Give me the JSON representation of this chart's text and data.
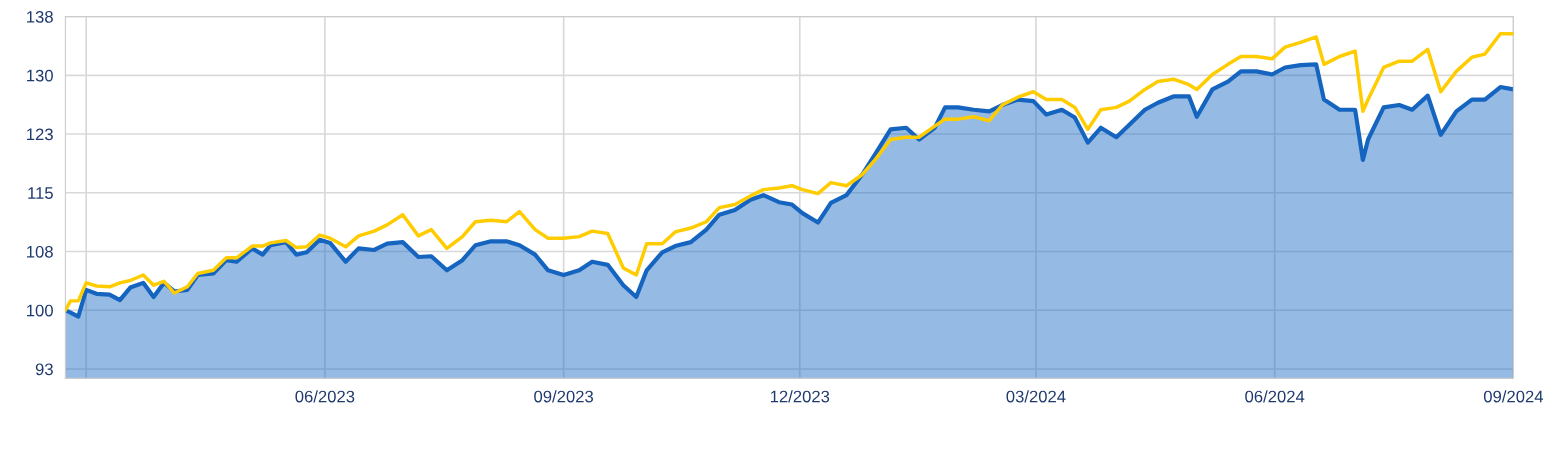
{
  "chart_data": {
    "type": "line",
    "x": [
      "2023-02-21",
      "2023-02-23",
      "2023-02-26",
      "2023-03-01",
      "2023-03-05",
      "2023-03-10",
      "2023-03-14",
      "2023-03-18",
      "2023-03-23",
      "2023-03-27",
      "2023-03-31",
      "2023-04-04",
      "2023-04-09",
      "2023-04-13",
      "2023-04-19",
      "2023-04-24",
      "2023-04-28",
      "2023-05-04",
      "2023-05-08",
      "2023-05-11",
      "2023-05-17",
      "2023-05-21",
      "2023-05-25",
      "2023-05-30",
      "2023-06-03",
      "2023-06-09",
      "2023-06-14",
      "2023-06-20",
      "2023-06-25",
      "2023-07-01",
      "2023-07-07",
      "2023-07-12",
      "2023-07-18",
      "2023-07-24",
      "2023-07-29",
      "2023-08-04",
      "2023-08-10",
      "2023-08-15",
      "2023-08-21",
      "2023-08-26",
      "2023-09-01",
      "2023-09-07",
      "2023-09-12",
      "2023-09-18",
      "2023-09-24",
      "2023-09-29",
      "2023-10-03",
      "2023-10-09",
      "2023-10-14",
      "2023-10-20",
      "2023-10-26",
      "2023-10-31",
      "2023-11-06",
      "2023-11-12",
      "2023-11-17",
      "2023-11-23",
      "2023-11-28",
      "2023-12-02",
      "2023-12-08",
      "2023-12-13",
      "2023-12-19",
      "2023-12-25",
      "2023-12-30",
      "2024-01-05",
      "2024-01-11",
      "2024-01-16",
      "2024-01-22",
      "2024-01-26",
      "2024-01-31",
      "2024-02-06",
      "2024-02-12",
      "2024-02-17",
      "2024-02-23",
      "2024-02-29",
      "2024-03-05",
      "2024-03-11",
      "2024-03-16",
      "2024-03-21",
      "2024-03-26",
      "2024-04-01",
      "2024-04-06",
      "2024-04-12",
      "2024-04-17",
      "2024-04-23",
      "2024-04-29",
      "2024-05-02",
      "2024-05-08",
      "2024-05-14",
      "2024-05-19",
      "2024-05-25",
      "2024-05-31",
      "2024-06-05",
      "2024-06-11",
      "2024-06-17",
      "2024-06-20",
      "2024-06-26",
      "2024-07-02",
      "2024-07-05",
      "2024-07-07",
      "2024-07-13",
      "2024-07-19",
      "2024-07-24",
      "2024-07-30",
      "2024-08-04",
      "2024-08-10",
      "2024-08-16",
      "2024-08-21",
      "2024-08-27",
      "2024-09-01"
    ],
    "series": [
      {
        "type": "area",
        "color": "#1565c0",
        "values": [
          100.0,
          99.7,
          99.2,
          102.6,
          102.1,
          102.0,
          101.3,
          102.9,
          103.5,
          101.7,
          103.5,
          102.4,
          102.6,
          104.5,
          104.7,
          106.4,
          106.2,
          107.9,
          107.1,
          108.3,
          108.7,
          107.1,
          107.4,
          109.0,
          108.6,
          106.2,
          107.9,
          107.7,
          108.5,
          108.7,
          106.8,
          106.9,
          105.1,
          106.4,
          108.3,
          108.8,
          108.8,
          108.3,
          107.1,
          105.1,
          104.5,
          105.1,
          106.2,
          105.8,
          103.2,
          101.7,
          105.1,
          107.4,
          108.2,
          108.7,
          110.3,
          112.2,
          112.8,
          114.1,
          114.7,
          113.8,
          113.5,
          112.4,
          111.2,
          113.7,
          114.7,
          117.3,
          119.9,
          123.1,
          123.3,
          121.8,
          123.3,
          125.9,
          125.9,
          125.6,
          125.4,
          126.2,
          126.9,
          126.7,
          125.0,
          125.6,
          124.6,
          121.4,
          123.3,
          122.1,
          123.7,
          125.6,
          126.5,
          127.3,
          127.3,
          124.7,
          128.2,
          129.2,
          130.5,
          130.5,
          130.1,
          131.0,
          131.3,
          131.4,
          126.9,
          125.6,
          125.6,
          119.2,
          121.8,
          125.9,
          126.2,
          125.6,
          127.4,
          122.4,
          125.4,
          126.9,
          126.9,
          128.5,
          128.2
        ]
      },
      {
        "color": "#ffcc00",
        "values": [
          100.0,
          101.2,
          101.2,
          103.5,
          103.1,
          103.0,
          103.5,
          103.8,
          104.5,
          103.2,
          103.7,
          102.2,
          103.0,
          104.7,
          105.1,
          106.7,
          106.7,
          108.2,
          108.2,
          108.6,
          108.9,
          108.0,
          108.1,
          109.6,
          109.2,
          108.1,
          109.5,
          110.1,
          110.9,
          112.2,
          109.5,
          110.3,
          107.9,
          109.4,
          111.3,
          111.5,
          111.3,
          112.6,
          110.3,
          109.2,
          109.2,
          109.4,
          110.1,
          109.8,
          105.4,
          104.5,
          108.5,
          108.5,
          110.0,
          110.5,
          111.3,
          113.1,
          113.5,
          114.6,
          115.4,
          115.6,
          115.9,
          115.4,
          114.9,
          116.3,
          115.9,
          117.3,
          119.2,
          121.8,
          122.1,
          122.1,
          123.5,
          124.4,
          124.4,
          124.7,
          124.2,
          126.2,
          127.2,
          127.9,
          126.9,
          126.9,
          125.9,
          123.1,
          125.6,
          125.9,
          126.7,
          128.2,
          129.2,
          129.5,
          128.8,
          128.2,
          130.1,
          131.4,
          132.4,
          132.4,
          132.1,
          133.6,
          134.2,
          134.9,
          131.4,
          132.4,
          133.1,
          125.4,
          126.9,
          131.0,
          131.8,
          131.8,
          133.3,
          127.9,
          130.5,
          132.3,
          132.7,
          135.3,
          135.3
        ]
      }
    ],
    "xlim": [
      "2023-02-21",
      "2024-09-01"
    ],
    "xticks": [
      {
        "value": "2023-03-01",
        "label": null
      },
      {
        "value": "2023-06-01",
        "label": "06/2023"
      },
      {
        "value": "2023-09-01",
        "label": "09/2023"
      },
      {
        "value": "2023-12-01",
        "label": "12/2023"
      },
      {
        "value": "2024-03-01",
        "label": "03/2024"
      },
      {
        "value": "2024-06-01",
        "label": "06/2024"
      },
      {
        "value": "2024-09-01",
        "label": "09/2024"
      }
    ],
    "ylim": [
      91.3,
      137.5
    ],
    "yticks": [
      {
        "value": 92.5,
        "label": "93"
      },
      100,
      {
        "value": 107.5,
        "label": "108"
      },
      115,
      {
        "value": 122.5,
        "label": "123"
      },
      130,
      {
        "value": 137.5,
        "label": "138"
      }
    ],
    "grid": true
  }
}
